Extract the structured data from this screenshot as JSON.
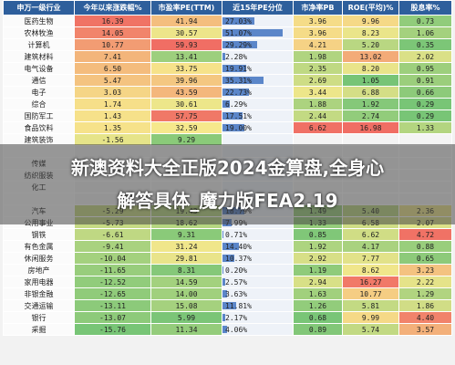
{
  "banner": {
    "line1": "新澳资料大全正版2024金算盘,全身心",
    "line2": "解答具体_魔力版FEA2.19"
  },
  "chart_data": {
    "type": "table",
    "columns": [
      "申万一级行业",
      "今年以来涨跌幅%",
      "市盈率PE(TTM)",
      "近15年PE分位",
      "市净率PB",
      "ROE(平均)%",
      "股息率%"
    ],
    "rows": [
      [
        "医药生物",
        "16.39",
        "41.94",
        "27.03%",
        "3.96",
        "9.96",
        "0.73"
      ],
      [
        "农林牧渔",
        "14.05",
        "30.57",
        "51.07%",
        "3.96",
        "8.23",
        "1.06"
      ],
      [
        "计算机",
        "10.77",
        "59.93",
        "29.29%",
        "4.21",
        "5.20",
        "0.35"
      ],
      [
        "建筑材料",
        "7.41",
        "13.41",
        "2.28%",
        "1.98",
        "13.02",
        "2.02"
      ],
      [
        "电气设备",
        "6.50",
        "33.75",
        "19.91%",
        "2.35",
        "8.20",
        "0.95"
      ],
      [
        "通信",
        "5.47",
        "39.96",
        "35.31%",
        "2.69",
        "1.05",
        "0.91"
      ],
      [
        "电子",
        "3.03",
        "43.59",
        "22.73%",
        "3.44",
        "6.88",
        "0.66"
      ],
      [
        "综合",
        "1.74",
        "30.61",
        "6.29%",
        "1.88",
        "1.92",
        "0.29"
      ],
      [
        "国防军工",
        "1.43",
        "57.75",
        "17.51%",
        "2.44",
        "2.74",
        "0.29"
      ],
      [
        "食品饮料",
        "1.35",
        "32.59",
        "19.00%",
        "6.62",
        "16.98",
        "1.33"
      ],
      [
        "建筑装饰",
        "-1.56",
        "9.29",
        "",
        "",
        "",
        ""
      ],
      [
        "",
        "",
        "",
        "",
        "",
        "",
        ""
      ],
      [
        "传媒",
        "",
        "",
        "",
        "",
        "",
        ""
      ],
      [
        "纺织服装",
        "",
        "",
        "",
        "",
        "",
        ""
      ],
      [
        "化工",
        "",
        "",
        "",
        "",
        "",
        ""
      ],
      [
        "",
        "",
        "",
        "",
        "",
        "",
        ""
      ],
      [
        "汽车",
        "-5.29",
        "19.43",
        "18.79%",
        "1.49",
        "5.40",
        "2.36"
      ],
      [
        "公用事业",
        "-5.73",
        "18.62",
        "7.99%",
        "1.33",
        "6.58",
        "2.07"
      ],
      [
        "钢铁",
        "-6.61",
        "9.31",
        "0.71%",
        "0.85",
        "6.62",
        "4.72"
      ],
      [
        "有色金属",
        "-9.41",
        "31.24",
        "14.40%",
        "1.92",
        "4.17",
        "0.88"
      ],
      [
        "休闲服务",
        "-10.04",
        "29.81",
        "10.37%",
        "2.92",
        "7.77",
        "0.65"
      ],
      [
        "房地产",
        "-11.65",
        "8.31",
        "0.20%",
        "1.19",
        "8.62",
        "3.23"
      ],
      [
        "家用电器",
        "-12.52",
        "14.59",
        "2.57%",
        "2.94",
        "16.27",
        "2.22"
      ],
      [
        "非银金融",
        "-12.65",
        "14.00",
        "3.63%",
        "1.63",
        "10.77",
        "1.29"
      ],
      [
        "交通运输",
        "-13.11",
        "15.08",
        "11.81%",
        "1.26",
        "5.81",
        "1.86"
      ],
      [
        "银行",
        "-13.07",
        "5.99",
        "2.17%",
        "0.68",
        "9.99",
        "4.40"
      ],
      [
        "采掘",
        "-15.76",
        "11.34",
        "4.06%",
        "0.89",
        "5.74",
        "3.57"
      ]
    ],
    "pe_percentile_values": [
      27.03,
      51.07,
      29.29,
      2.28,
      19.91,
      35.31,
      22.73,
      6.29,
      17.51,
      19.0,
      null,
      null,
      null,
      null,
      null,
      null,
      18.79,
      7.99,
      0.71,
      14.4,
      10.37,
      0.2,
      2.57,
      3.63,
      11.81,
      2.17,
      4.06
    ]
  }
}
